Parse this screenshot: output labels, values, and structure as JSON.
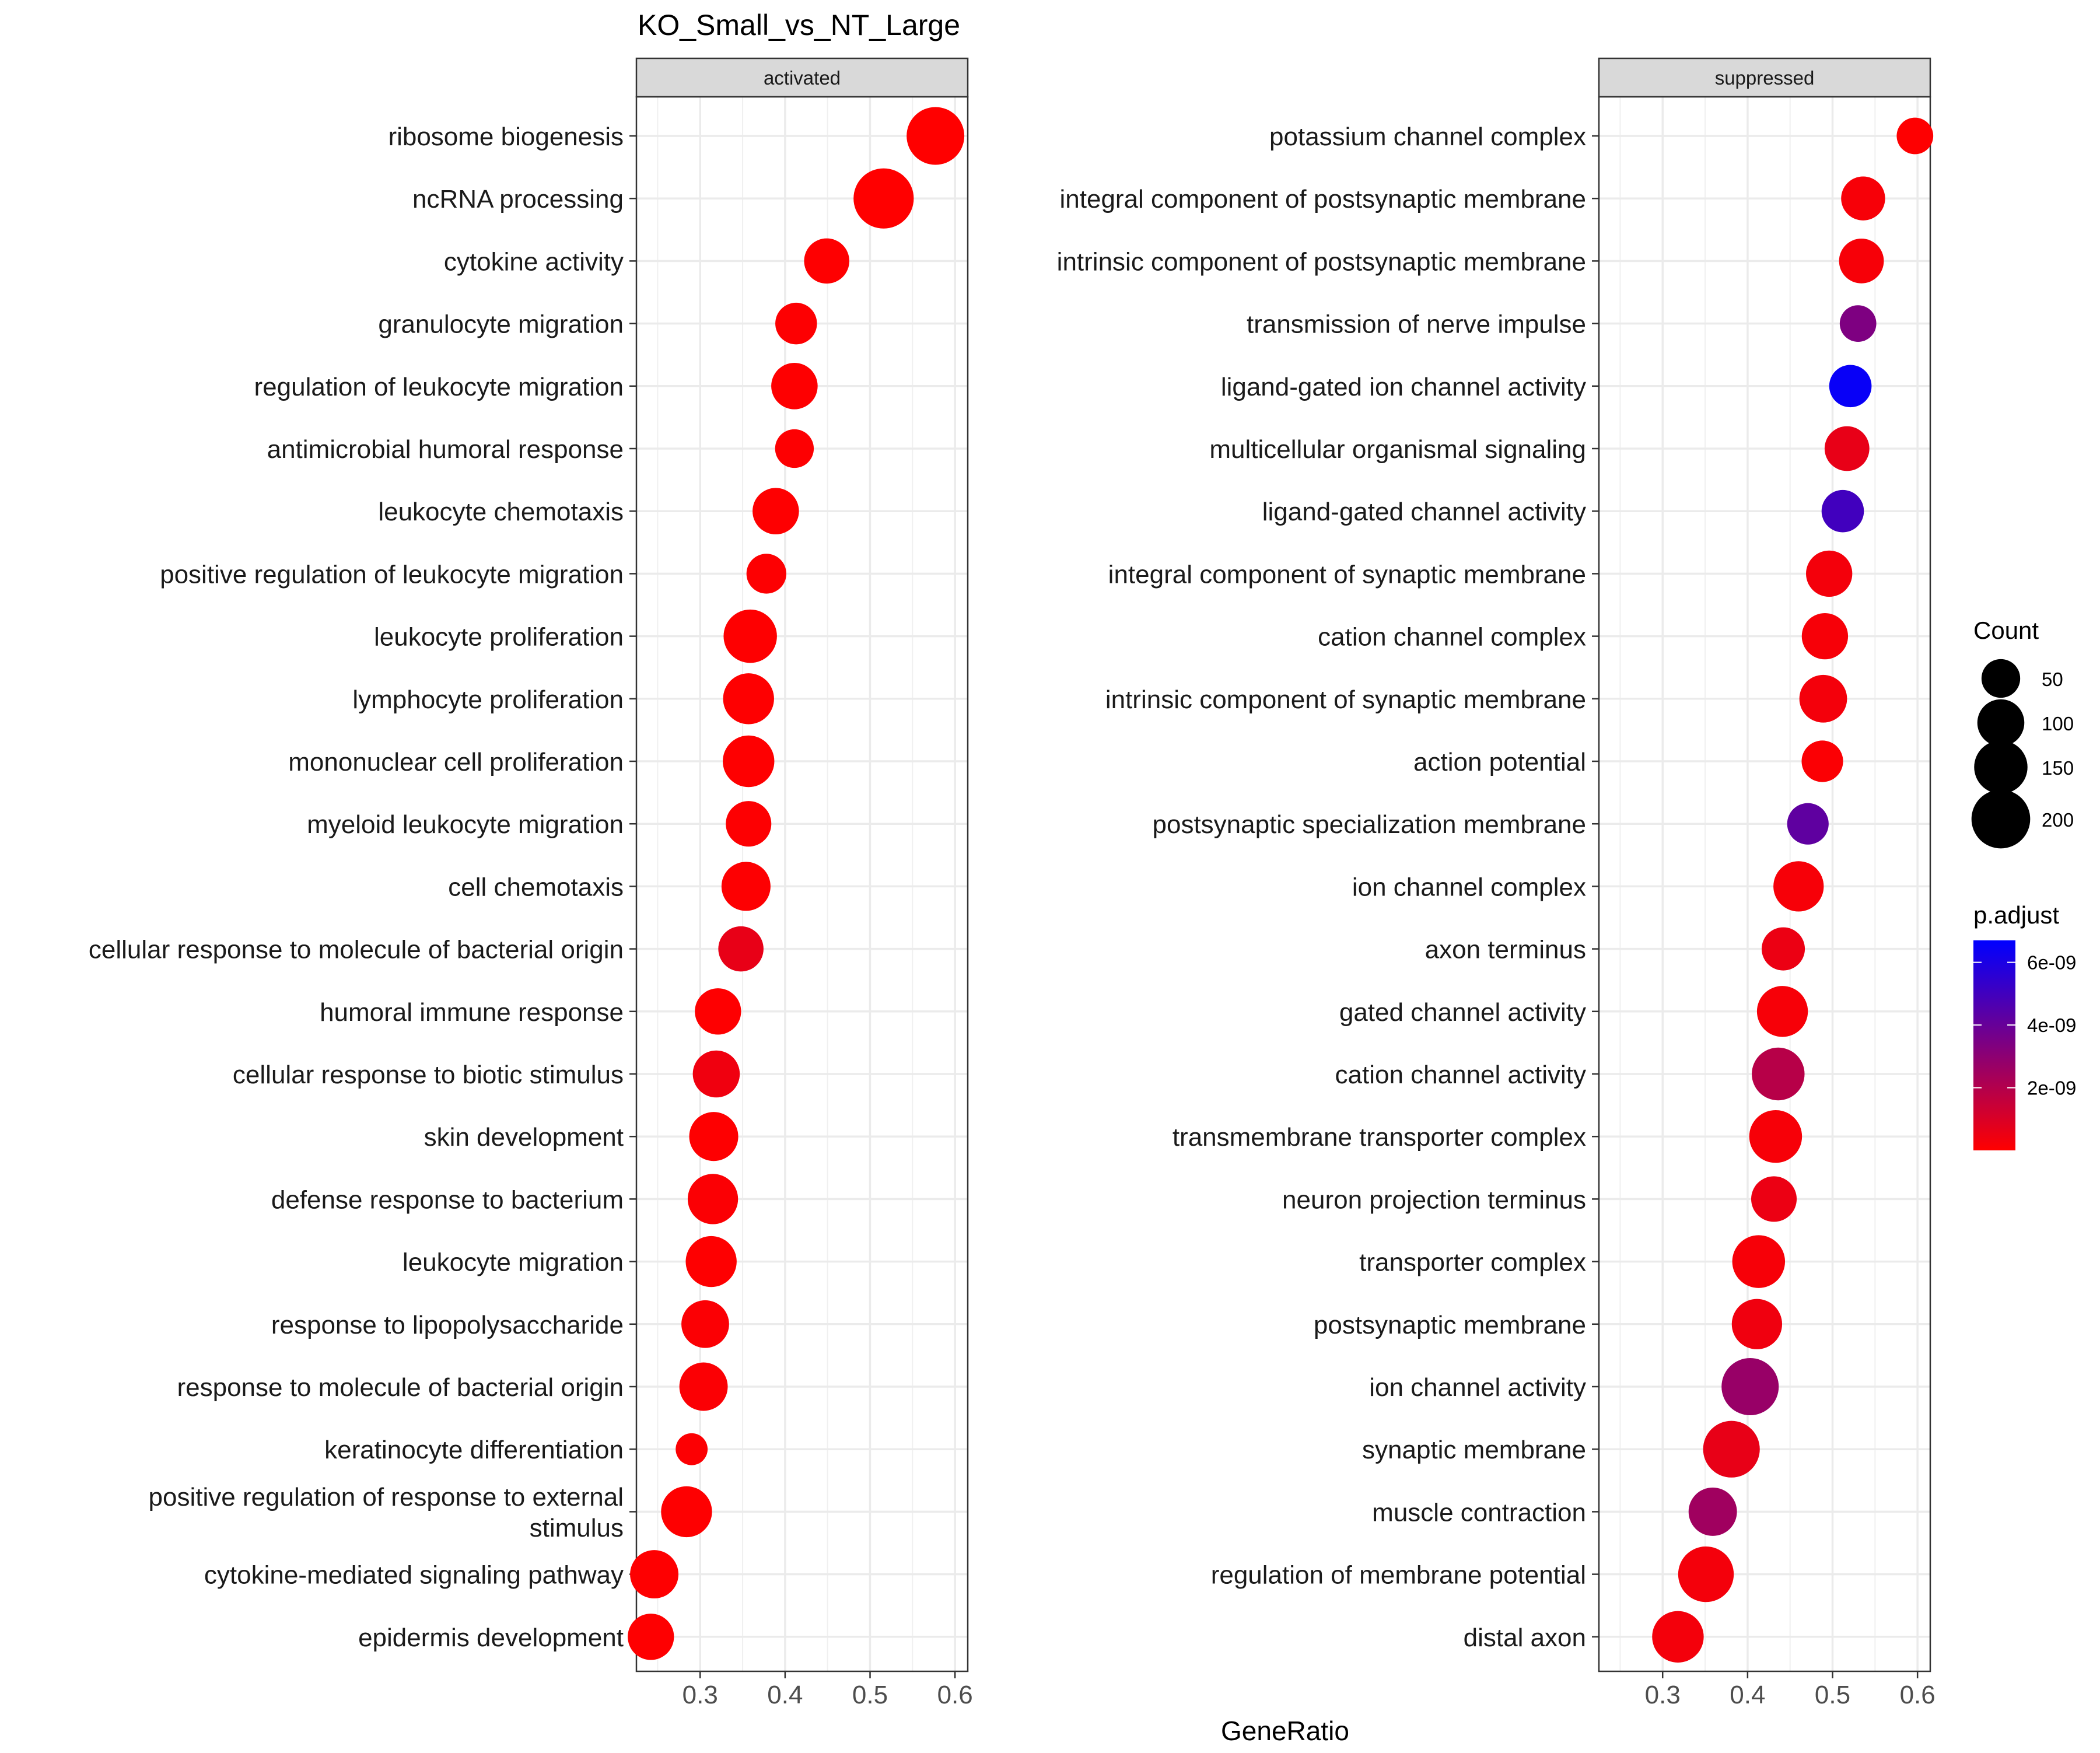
{
  "chart_data": {
    "type": "scatter",
    "title": "KO_Small_vs_NT_Large",
    "xlabel": "GeneRatio",
    "ylabel": "",
    "xlim": [
      0.225,
      0.615
    ],
    "x_ticks": [
      0.3,
      0.4,
      0.5,
      0.6
    ],
    "x_tick_labels": [
      "0.3",
      "0.4",
      "0.5",
      "0.6"
    ],
    "grid": true,
    "legend_position": "right",
    "panels": [
      {
        "facet": "activated",
        "terms": [
          {
            "label": "ribosome biogenesis",
            "x": 0.577,
            "count": 190,
            "p_adjust": 1e-12
          },
          {
            "label": "ncRNA processing",
            "x": 0.516,
            "count": 215,
            "p_adjust": 1e-12
          },
          {
            "label": "cytokine activity",
            "x": 0.449,
            "count": 88,
            "p_adjust": 2e-11
          },
          {
            "label": "granulocyte migration",
            "x": 0.413,
            "count": 66,
            "p_adjust": 5e-11
          },
          {
            "label": "regulation of leukocyte migration",
            "x": 0.411,
            "count": 96,
            "p_adjust": 3e-11
          },
          {
            "label": "antimicrobial humoral response",
            "x": 0.411,
            "count": 50,
            "p_adjust": 6e-11
          },
          {
            "label": "leukocyte chemotaxis",
            "x": 0.389,
            "count": 96,
            "p_adjust": 3e-11
          },
          {
            "label": "positive regulation of leukocyte migration",
            "x": 0.378,
            "count": 56,
            "p_adjust": 6e-11
          },
          {
            "label": "leukocyte proliferation",
            "x": 0.359,
            "count": 150,
            "p_adjust": 2e-11
          },
          {
            "label": "lymphocyte proliferation",
            "x": 0.357,
            "count": 130,
            "p_adjust": 2e-11
          },
          {
            "label": "mononuclear cell proliferation",
            "x": 0.357,
            "count": 135,
            "p_adjust": 2e-11
          },
          {
            "label": "myeloid leukocyte migration",
            "x": 0.357,
            "count": 90,
            "p_adjust": 5e-11
          },
          {
            "label": "cell chemotaxis",
            "x": 0.354,
            "count": 115,
            "p_adjust": 5e-11
          },
          {
            "label": "cellular response to molecule of bacterial origin",
            "x": 0.348,
            "count": 88,
            "p_adjust": 6e-10
          },
          {
            "label": "humoral immune response",
            "x": 0.321,
            "count": 95,
            "p_adjust": 2e-11
          },
          {
            "label": "cellular response to biotic stimulus",
            "x": 0.319,
            "count": 100,
            "p_adjust": 4e-10
          },
          {
            "label": "skin development",
            "x": 0.316,
            "count": 115,
            "p_adjust": 3e-11
          },
          {
            "label": "defense response to bacterium",
            "x": 0.315,
            "count": 125,
            "p_adjust": 1e-10
          },
          {
            "label": "leukocyte migration",
            "x": 0.313,
            "count": 130,
            "p_adjust": 3e-11
          },
          {
            "label": "response to lipopolysaccharide",
            "x": 0.306,
            "count": 105,
            "p_adjust": 1e-10
          },
          {
            "label": "response to molecule of bacterial origin",
            "x": 0.304,
            "count": 110,
            "p_adjust": 1e-10
          },
          {
            "label": "keratinocyte differentiation",
            "x": 0.29,
            "count": 22,
            "p_adjust": 8e-11
          },
          {
            "label": "positive regulation of response to external stimulus",
            "label_lines": [
              "positive regulation of response to external",
              "stimulus"
            ],
            "x": 0.284,
            "count": 130,
            "p_adjust": 3e-11
          },
          {
            "label": "cytokine-mediated signaling pathway",
            "x": 0.246,
            "count": 110,
            "p_adjust": 3e-11
          },
          {
            "label": "epidermis development",
            "x": 0.242,
            "count": 95,
            "p_adjust": 3e-11
          }
        ]
      },
      {
        "facet": "suppressed",
        "terms": [
          {
            "label": "potassium channel complex",
            "x": 0.597,
            "count": 40,
            "p_adjust": 2e-11
          },
          {
            "label": "integral component of postsynaptic membrane",
            "x": 0.536,
            "count": 80,
            "p_adjust": 2e-10
          },
          {
            "label": "intrinsic component of postsynaptic membrane",
            "x": 0.534,
            "count": 85,
            "p_adjust": 2e-10
          },
          {
            "label": "transmission of nerve impulse",
            "x": 0.53,
            "count": 40,
            "p_adjust": 3.4e-09
          },
          {
            "label": "ligand-gated ion channel activity",
            "x": 0.521,
            "count": 70,
            "p_adjust": 6.5e-09
          },
          {
            "label": "multicellular organismal signaling",
            "x": 0.517,
            "count": 85,
            "p_adjust": 6e-10
          },
          {
            "label": "ligand-gated channel activity",
            "x": 0.512,
            "count": 70,
            "p_adjust": 5e-09
          },
          {
            "label": "integral component of synaptic membrane",
            "x": 0.496,
            "count": 95,
            "p_adjust": 3e-10
          },
          {
            "label": "cation channel complex",
            "x": 0.491,
            "count": 95,
            "p_adjust": 2e-10
          },
          {
            "label": "intrinsic component of synaptic membrane",
            "x": 0.489,
            "count": 105,
            "p_adjust": 3e-10
          },
          {
            "label": "action potential",
            "x": 0.488,
            "count": 65,
            "p_adjust": 1e-10
          },
          {
            "label": "postsynaptic specialization membrane",
            "x": 0.471,
            "count": 65,
            "p_adjust": 4.2e-09
          },
          {
            "label": "ion channel complex",
            "x": 0.46,
            "count": 125,
            "p_adjust": 2e-10
          },
          {
            "label": "axon terminus",
            "x": 0.442,
            "count": 75,
            "p_adjust": 5e-10
          },
          {
            "label": "gated channel activity",
            "x": 0.441,
            "count": 130,
            "p_adjust": 2e-10
          },
          {
            "label": "cation channel activity",
            "x": 0.436,
            "count": 145,
            "p_adjust": 1.9e-09
          },
          {
            "label": "transmembrane transporter complex",
            "x": 0.433,
            "count": 145,
            "p_adjust": 2e-10
          },
          {
            "label": "neuron projection terminus",
            "x": 0.431,
            "count": 90,
            "p_adjust": 5e-10
          },
          {
            "label": "transporter complex",
            "x": 0.413,
            "count": 145,
            "p_adjust": 2e-10
          },
          {
            "label": "postsynaptic membrane",
            "x": 0.411,
            "count": 125,
            "p_adjust": 4e-10
          },
          {
            "label": "ion channel activity",
            "x": 0.403,
            "count": 185,
            "p_adjust": 2.7e-09
          },
          {
            "label": "synaptic membrane",
            "x": 0.381,
            "count": 180,
            "p_adjust": 6e-10
          },
          {
            "label": "muscle contraction",
            "x": 0.359,
            "count": 110,
            "p_adjust": 2.5e-09
          },
          {
            "label": "regulation of membrane potential",
            "x": 0.351,
            "count": 170,
            "p_adjust": 3e-10
          },
          {
            "label": "distal axon",
            "x": 0.318,
            "count": 135,
            "p_adjust": 3e-10
          }
        ]
      }
    ],
    "legend_size": {
      "title": "Count",
      "values": [
        50,
        100,
        150,
        200
      ],
      "labels": [
        "50",
        "100",
        "150",
        "200"
      ]
    },
    "legend_color": {
      "title": "p.adjust",
      "range": [
        1e-12,
        6.7e-09
      ],
      "ticks": [
        2e-09,
        4e-09,
        6e-09
      ],
      "tick_labels": [
        "2e-09",
        "4e-09",
        "6e-09"
      ],
      "low_color": "#FF0000",
      "high_color": "#0000FF"
    }
  }
}
